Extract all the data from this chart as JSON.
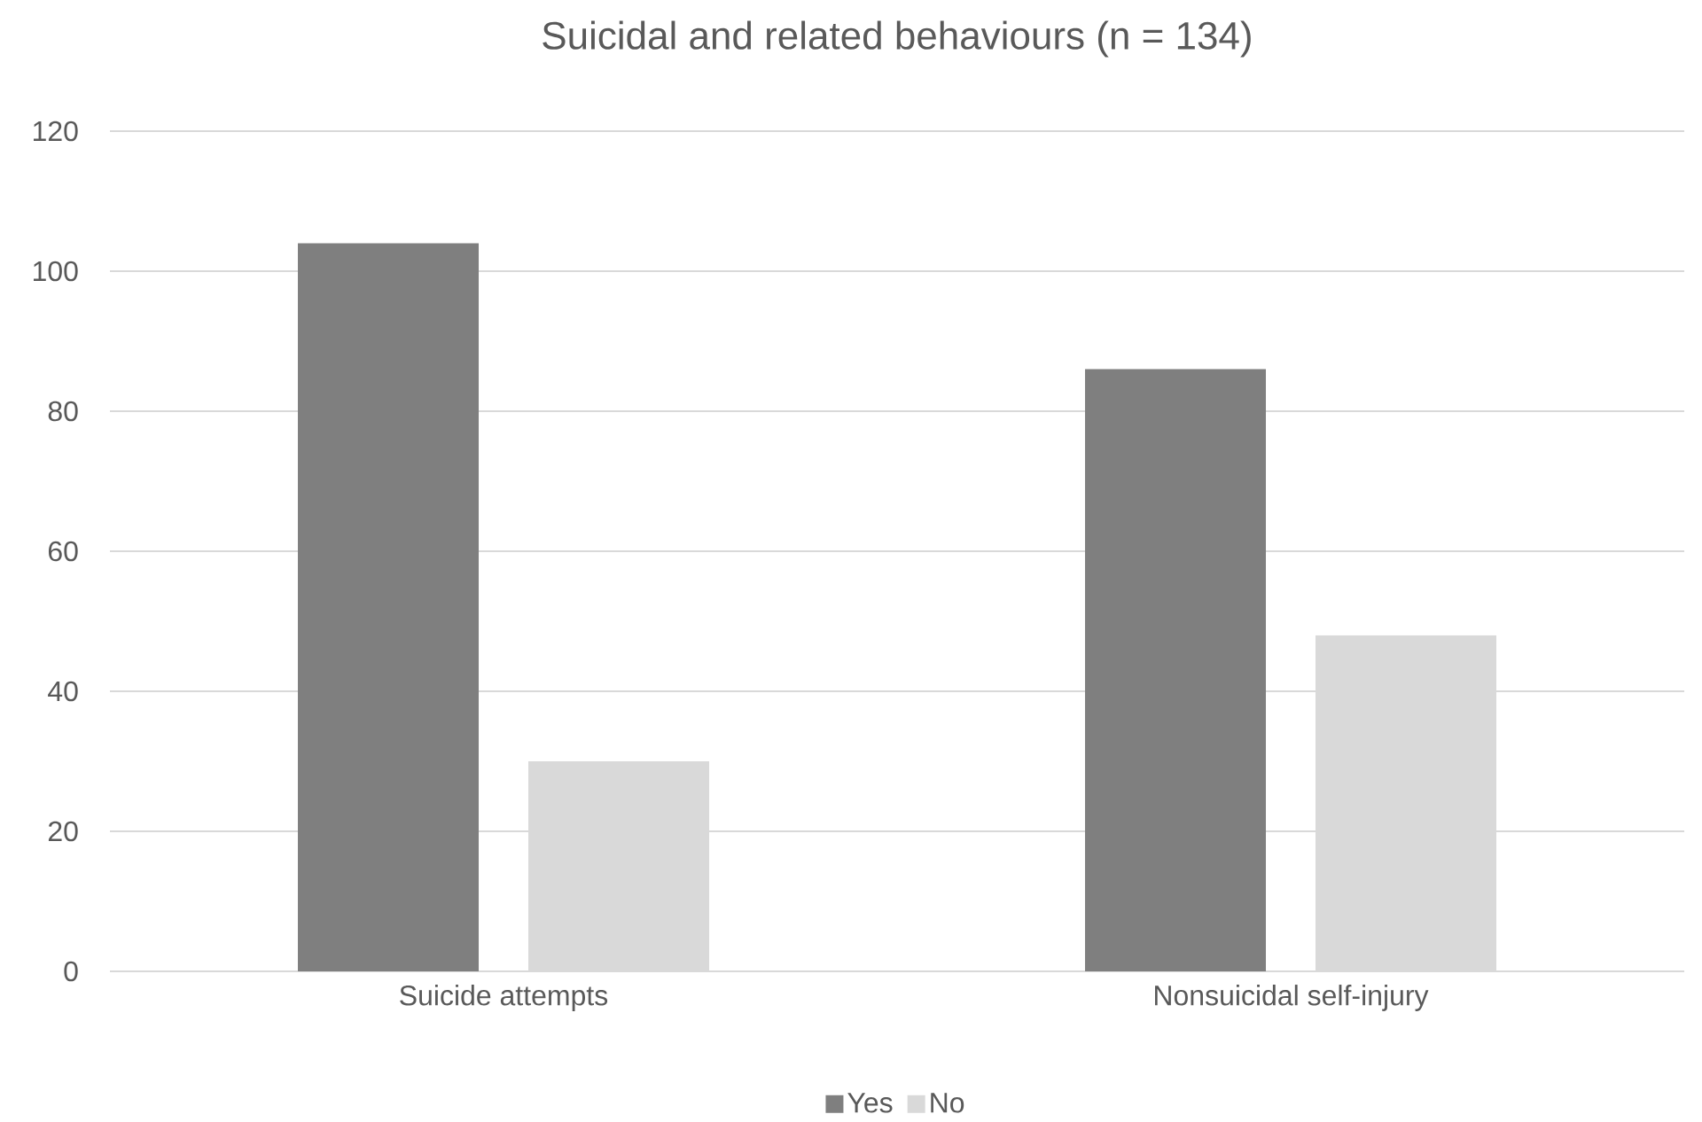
{
  "chart_data": {
    "type": "bar",
    "title": "Suicidal and related behaviours (n = 134)",
    "categories": [
      "Suicide attempts",
      "Nonsuicidal self-injury"
    ],
    "series": [
      {
        "name": "Yes",
        "color": "#7f7f7f",
        "values": [
          104,
          86
        ]
      },
      {
        "name": "No",
        "color": "#d9d9d9",
        "values": [
          30,
          48
        ]
      }
    ],
    "ylim": [
      0,
      120
    ],
    "yticks": [
      0,
      20,
      40,
      60,
      80,
      100,
      120
    ],
    "grid": "y",
    "legend": "bottom"
  }
}
